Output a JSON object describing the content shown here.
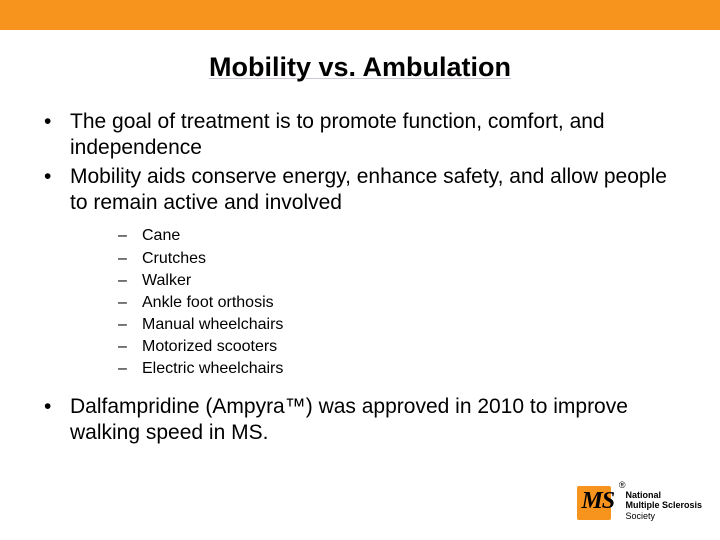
{
  "colors": {
    "accent": "#f7941e",
    "text": "#000000",
    "background": "#ffffff",
    "underline": "#c8c8d8"
  },
  "typography": {
    "title_fontsize": 27,
    "bullet_fontsize": 21,
    "sub_fontsize": 16,
    "logo_text_fontsize": 9
  },
  "title": "Mobility vs. Ambulation",
  "bullets": [
    "The goal of treatment is to promote function, comfort, and independence",
    "Mobility aids conserve energy, enhance safety, and allow people to remain active and involved",
    "Dalfampridine (Ampyra™) was approved in 2010 to improve walking speed in MS."
  ],
  "sub_items": [
    "Cane",
    "Crutches",
    "Walker",
    "Ankle foot orthosis",
    "Manual wheelchairs",
    "Motorized scooters",
    "Electric wheelchairs"
  ],
  "logo": {
    "mark": "MS",
    "registered": "®",
    "line1": "National",
    "line2": "Multiple Sclerosis",
    "line3": "Society"
  }
}
